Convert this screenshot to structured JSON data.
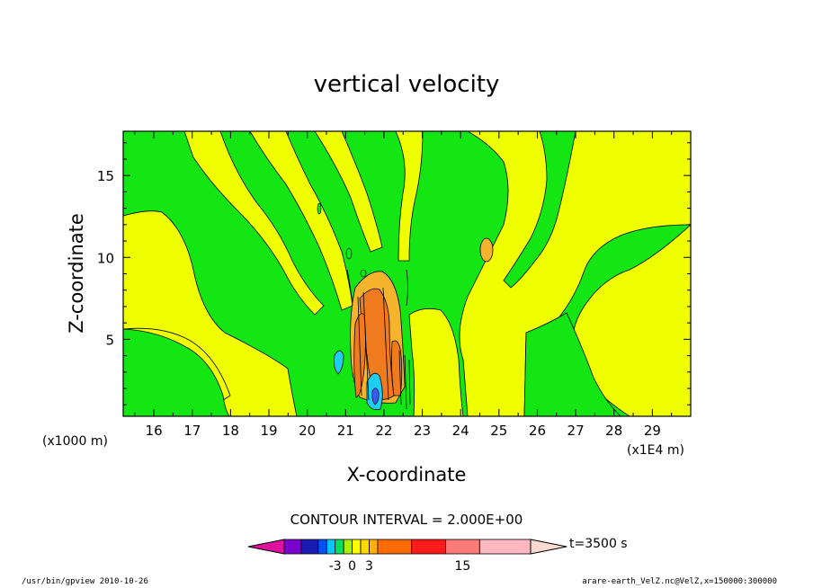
{
  "chart_data": {
    "type": "heatmap",
    "title": "vertical velocity",
    "xlabel": "X-coordinate",
    "ylabel": "Z-coordinate",
    "x_unit_left": "(x1000 m)",
    "x_unit_right": "(x1E4 m)",
    "xlim": [
      15.2,
      30.0
    ],
    "ylim": [
      0.3,
      17.7
    ],
    "x_ticks": [
      "16",
      "17",
      "18",
      "19",
      "20",
      "21",
      "22",
      "23",
      "24",
      "25",
      "26",
      "27",
      "28",
      "29"
    ],
    "y_ticks": [
      "5",
      "10",
      "15"
    ],
    "contour_interval_text": "CONTOUR INTERVAL = 2.000E+00",
    "time_label": "t=3500 s",
    "colorbar": {
      "colors": [
        "#e0119d",
        "#7a00cc",
        "#1a1ab3",
        "#0050ff",
        "#00c8ff",
        "#00e060",
        "#a8f000",
        "#ffff00",
        "#ffd800",
        "#ffb000",
        "#ff6a00",
        "#ff1a1a",
        "#ff7a7a",
        "#ffb8c0",
        "#ffd8d0"
      ],
      "widths": [
        1,
        1,
        1,
        0.5,
        0.5,
        0.5,
        0.5,
        0.5,
        0.5,
        0.5,
        2,
        2,
        2,
        3,
        2
      ],
      "tick_labels": [
        {
          "label": "-3",
          "value": -3
        },
        {
          "label": "0",
          "value": 0
        },
        {
          "label": "3",
          "value": 3
        },
        {
          "label": "15",
          "value": 15
        }
      ]
    },
    "colors": {
      "green": "#14e614",
      "yellow": "#f0ff00",
      "orange": "#f6b42c",
      "dark_orange": "#f07a1e",
      "cyan": "#1ecdf0",
      "blue": "#3c5af0"
    }
  },
  "footer": {
    "left": "/usr/bin/gpview   2010-10-26",
    "right": "arare-earth_VelZ.nc@VelZ,x=150000:300000"
  }
}
